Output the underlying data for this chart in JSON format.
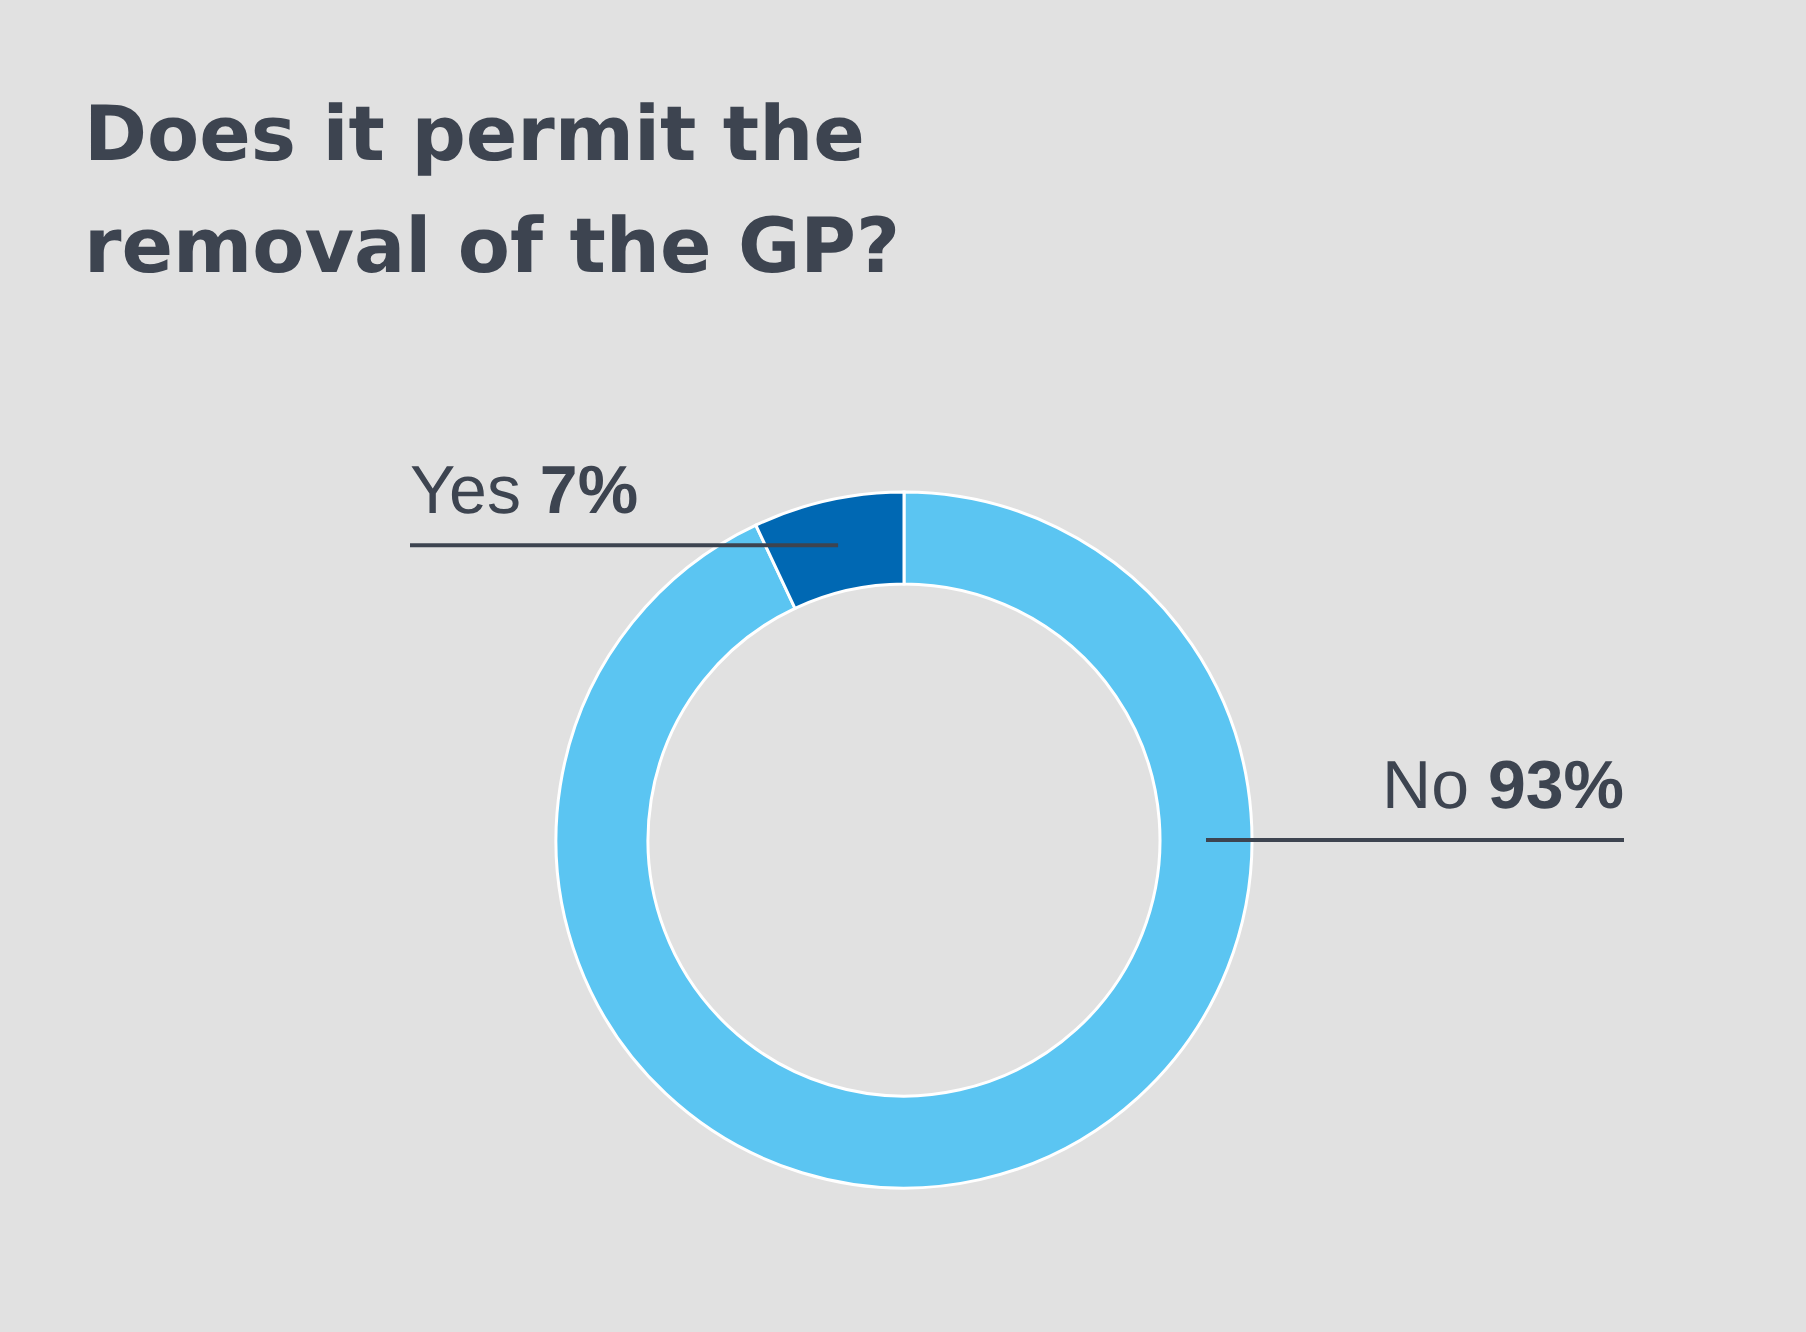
{
  "chart_data": {
    "type": "donut",
    "title": "Does it permit the removal of the GP?",
    "categories": [
      "No",
      "Yes"
    ],
    "values": [
      93,
      7
    ],
    "value_labels": [
      "93%",
      "7%"
    ],
    "colors": [
      "#5bc5f2",
      "#0068b3"
    ]
  }
}
